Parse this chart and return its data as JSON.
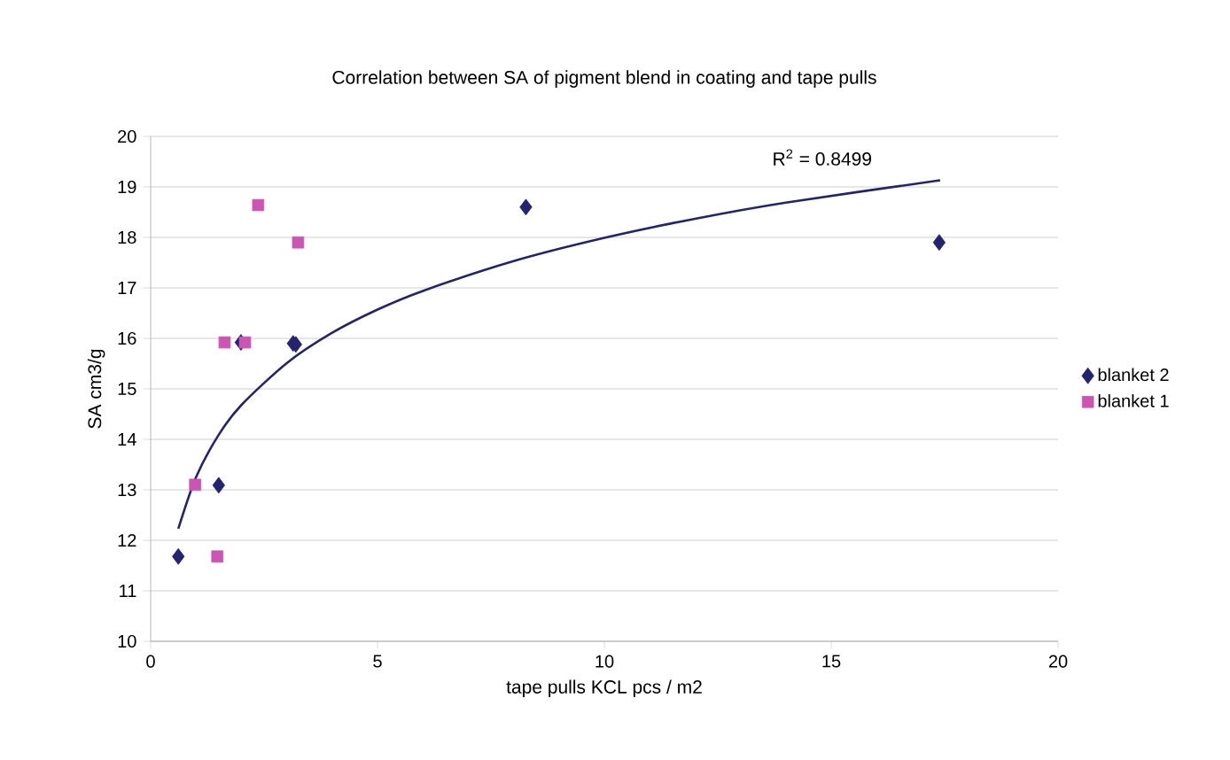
{
  "chart_data": {
    "type": "scatter",
    "title": "Correlation between SA of pigment blend in coating and tape pulls",
    "xlabel": "tape pulls KCL pcs / m2",
    "ylabel": "SA cm3/g",
    "xlim": [
      0,
      20
    ],
    "xticks": [
      0,
      5,
      10,
      15,
      20
    ],
    "ylim": [
      10,
      20
    ],
    "yticks": [
      10,
      11,
      12,
      13,
      14,
      15,
      16,
      17,
      18,
      19,
      20
    ],
    "grid": "y",
    "legend": "right",
    "annotations": [
      "R$^{2}$ = 0.8499"
    ],
    "series": [
      {
        "name": "blanket 2",
        "color": "#24246e",
        "marker": "diamond",
        "x": [
          0.61,
          1.5,
          1.99,
          3.14,
          3.2,
          8.27,
          17.38
        ],
        "values": [
          11.68,
          13.09,
          15.92,
          15.9,
          15.88,
          18.6,
          17.9
        ]
      },
      {
        "name": "blanket 1",
        "color": "#cc55b4",
        "marker": "square",
        "x": [
          0.98,
          1.47,
          1.63,
          2.08,
          2.37,
          3.25
        ],
        "values": [
          13.1,
          11.68,
          15.92,
          15.92,
          18.64,
          17.9
        ]
      },
      {
        "type": "line",
        "color": "#24246e",
        "marker": "none",
        "x": [
          0.61,
          1,
          1.5,
          2,
          3,
          4,
          5,
          6,
          8,
          10,
          12,
          14,
          17.4
        ],
        "values": [
          12.23,
          13.25,
          14.09,
          14.68,
          15.51,
          16.11,
          16.57,
          16.94,
          17.53,
          17.99,
          18.37,
          18.69,
          19.13
        ]
      }
    ]
  }
}
